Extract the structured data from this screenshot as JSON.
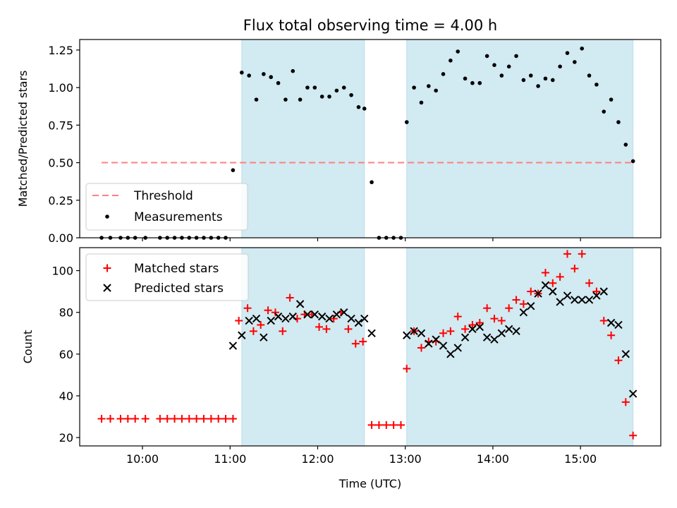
{
  "title": "Flux total observing time = 4.00 h",
  "xlabel": "Time (UTC)",
  "x_ticks": [
    "10:00",
    "11:00",
    "12:00",
    "13:00",
    "14:00",
    "15:00"
  ],
  "colors": {
    "shade": "#add8e6",
    "threshold": "#ff8080",
    "matched": "#ff0000",
    "predicted": "#000000",
    "measurement": "#000000"
  },
  "chart_data": [
    {
      "type": "scatter",
      "ylabel": "Matched/Predicted stars",
      "xlim": [
        "09:17",
        "15:55"
      ],
      "ylim": [
        0,
        1.32
      ],
      "y_ticks": [
        "0.00",
        "0.25",
        "0.50",
        "0.75",
        "1.00",
        "1.25"
      ],
      "shaded_regions": [
        [
          "11:08",
          "12:32"
        ],
        [
          "13:01",
          "15:36"
        ]
      ],
      "threshold": {
        "name": "Threshold",
        "value": 0.5,
        "x_range": [
          "09:32",
          "15:36"
        ]
      },
      "series": [
        {
          "name": "Measurements",
          "points": [
            [
              "09:32",
              0
            ],
            [
              "09:38",
              0
            ],
            [
              "09:45",
              0
            ],
            [
              "09:50",
              0
            ],
            [
              "09:55",
              0
            ],
            [
              "10:02",
              0
            ],
            [
              "10:12",
              0
            ],
            [
              "10:17",
              0
            ],
            [
              "10:22",
              0
            ],
            [
              "10:27",
              0
            ],
            [
              "10:32",
              0
            ],
            [
              "10:37",
              0
            ],
            [
              "10:42",
              0
            ],
            [
              "10:47",
              0
            ],
            [
              "10:52",
              0
            ],
            [
              "10:57",
              0
            ],
            [
              "11:02",
              0.45
            ],
            [
              "11:08",
              1.1
            ],
            [
              "11:13",
              1.08
            ],
            [
              "11:18",
              0.92
            ],
            [
              "11:23",
              1.09
            ],
            [
              "11:28",
              1.07
            ],
            [
              "11:33",
              1.03
            ],
            [
              "11:38",
              0.92
            ],
            [
              "11:43",
              1.11
            ],
            [
              "11:48",
              0.92
            ],
            [
              "11:53",
              1.0
            ],
            [
              "11:58",
              1.0
            ],
            [
              "12:03",
              0.94
            ],
            [
              "12:08",
              0.94
            ],
            [
              "12:13",
              0.98
            ],
            [
              "12:18",
              1.0
            ],
            [
              "12:23",
              0.95
            ],
            [
              "12:28",
              0.87
            ],
            [
              "12:32",
              0.86
            ],
            [
              "12:37",
              0.37
            ],
            [
              "12:42",
              0
            ],
            [
              "12:47",
              0
            ],
            [
              "12:52",
              0
            ],
            [
              "12:57",
              0
            ],
            [
              "13:01",
              0.77
            ],
            [
              "13:06",
              1.0
            ],
            [
              "13:11",
              0.9
            ],
            [
              "13:16",
              1.01
            ],
            [
              "13:21",
              0.98
            ],
            [
              "13:26",
              1.09
            ],
            [
              "13:31",
              1.18
            ],
            [
              "13:36",
              1.24
            ],
            [
              "13:41",
              1.06
            ],
            [
              "13:46",
              1.03
            ],
            [
              "13:51",
              1.03
            ],
            [
              "13:56",
              1.21
            ],
            [
              "14:01",
              1.15
            ],
            [
              "14:06",
              1.08
            ],
            [
              "14:11",
              1.14
            ],
            [
              "14:16",
              1.21
            ],
            [
              "14:21",
              1.05
            ],
            [
              "14:26",
              1.08
            ],
            [
              "14:31",
              1.01
            ],
            [
              "14:36",
              1.06
            ],
            [
              "14:41",
              1.05
            ],
            [
              "14:46",
              1.14
            ],
            [
              "14:51",
              1.23
            ],
            [
              "14:56",
              1.17
            ],
            [
              "15:01",
              1.26
            ],
            [
              "15:06",
              1.08
            ],
            [
              "15:11",
              1.02
            ],
            [
              "15:16",
              0.84
            ],
            [
              "15:21",
              0.92
            ],
            [
              "15:26",
              0.77
            ],
            [
              "15:31",
              0.62
            ],
            [
              "15:36",
              0.51
            ]
          ]
        }
      ]
    },
    {
      "type": "scatter",
      "ylabel": "Count",
      "xlim": [
        "09:17",
        "15:55"
      ],
      "ylim": [
        16,
        111
      ],
      "y_ticks": [
        "20",
        "40",
        "60",
        "80",
        "100"
      ],
      "shaded_regions": [
        [
          "11:08",
          "12:32"
        ],
        [
          "13:01",
          "15:36"
        ]
      ],
      "series": [
        {
          "name": "Matched stars",
          "points": [
            [
              "09:32",
              29
            ],
            [
              "09:38",
              29
            ],
            [
              "09:45",
              29
            ],
            [
              "09:50",
              29
            ],
            [
              "09:55",
              29
            ],
            [
              "10:02",
              29
            ],
            [
              "10:12",
              29
            ],
            [
              "10:17",
              29
            ],
            [
              "10:22",
              29
            ],
            [
              "10:27",
              29
            ],
            [
              "10:32",
              29
            ],
            [
              "10:37",
              29
            ],
            [
              "10:42",
              29
            ],
            [
              "10:47",
              29
            ],
            [
              "10:52",
              29
            ],
            [
              "10:57",
              29
            ],
            [
              "11:02",
              29
            ],
            [
              "11:06",
              76
            ],
            [
              "11:12",
              82
            ],
            [
              "11:16",
              71
            ],
            [
              "11:21",
              74
            ],
            [
              "11:26",
              81
            ],
            [
              "11:31",
              80
            ],
            [
              "11:36",
              71
            ],
            [
              "11:41",
              87
            ],
            [
              "11:46",
              77
            ],
            [
              "11:51",
              79
            ],
            [
              "11:56",
              79
            ],
            [
              "12:01",
              73
            ],
            [
              "12:06",
              72
            ],
            [
              "12:11",
              77
            ],
            [
              "12:16",
              80
            ],
            [
              "12:21",
              72
            ],
            [
              "12:26",
              65
            ],
            [
              "12:31",
              66
            ],
            [
              "12:37",
              26
            ],
            [
              "12:42",
              26
            ],
            [
              "12:47",
              26
            ],
            [
              "12:52",
              26
            ],
            [
              "12:57",
              26
            ],
            [
              "13:01",
              53
            ],
            [
              "13:06",
              71
            ],
            [
              "13:11",
              63
            ],
            [
              "13:16",
              66
            ],
            [
              "13:21",
              66
            ],
            [
              "13:26",
              70
            ],
            [
              "13:31",
              71
            ],
            [
              "13:36",
              78
            ],
            [
              "13:41",
              72
            ],
            [
              "13:46",
              74
            ],
            [
              "13:51",
              75
            ],
            [
              "13:56",
              82
            ],
            [
              "14:01",
              77
            ],
            [
              "14:06",
              76
            ],
            [
              "14:11",
              82
            ],
            [
              "14:16",
              86
            ],
            [
              "14:21",
              84
            ],
            [
              "14:26",
              90
            ],
            [
              "14:31",
              89
            ],
            [
              "14:36",
              99
            ],
            [
              "14:41",
              94
            ],
            [
              "14:46",
              97
            ],
            [
              "14:51",
              108
            ],
            [
              "14:56",
              101
            ],
            [
              "15:01",
              108
            ],
            [
              "15:06",
              94
            ],
            [
              "15:11",
              90
            ],
            [
              "15:16",
              76
            ],
            [
              "15:21",
              69
            ],
            [
              "15:26",
              57
            ],
            [
              "15:31",
              37
            ],
            [
              "15:36",
              21
            ]
          ]
        },
        {
          "name": "Predicted stars",
          "points": [
            [
              "11:02",
              64
            ],
            [
              "11:08",
              69
            ],
            [
              "11:13",
              76
            ],
            [
              "11:18",
              77
            ],
            [
              "11:23",
              68
            ],
            [
              "11:28",
              76
            ],
            [
              "11:33",
              78
            ],
            [
              "11:38",
              77
            ],
            [
              "11:43",
              78
            ],
            [
              "11:48",
              84
            ],
            [
              "11:53",
              79
            ],
            [
              "11:58",
              79
            ],
            [
              "12:03",
              78
            ],
            [
              "12:08",
              77
            ],
            [
              "12:13",
              79
            ],
            [
              "12:18",
              80
            ],
            [
              "12:23",
              77
            ],
            [
              "12:28",
              75
            ],
            [
              "12:32",
              77
            ],
            [
              "12:37",
              70
            ],
            [
              "13:01",
              69
            ],
            [
              "13:06",
              71
            ],
            [
              "13:11",
              70
            ],
            [
              "13:16",
              65
            ],
            [
              "13:21",
              67
            ],
            [
              "13:26",
              64
            ],
            [
              "13:31",
              60
            ],
            [
              "13:36",
              63
            ],
            [
              "13:41",
              68
            ],
            [
              "13:46",
              72
            ],
            [
              "13:51",
              73
            ],
            [
              "13:56",
              68
            ],
            [
              "14:01",
              67
            ],
            [
              "14:06",
              70
            ],
            [
              "14:11",
              72
            ],
            [
              "14:16",
              71
            ],
            [
              "14:21",
              80
            ],
            [
              "14:26",
              83
            ],
            [
              "14:31",
              89
            ],
            [
              "14:36",
              93
            ],
            [
              "14:41",
              90
            ],
            [
              "14:46",
              85
            ],
            [
              "14:51",
              88
            ],
            [
              "14:56",
              86
            ],
            [
              "15:01",
              86
            ],
            [
              "15:06",
              86
            ],
            [
              "15:11",
              88
            ],
            [
              "15:16",
              90
            ],
            [
              "15:21",
              75
            ],
            [
              "15:26",
              74
            ],
            [
              "15:31",
              60
            ],
            [
              "15:36",
              41
            ]
          ]
        }
      ]
    }
  ]
}
